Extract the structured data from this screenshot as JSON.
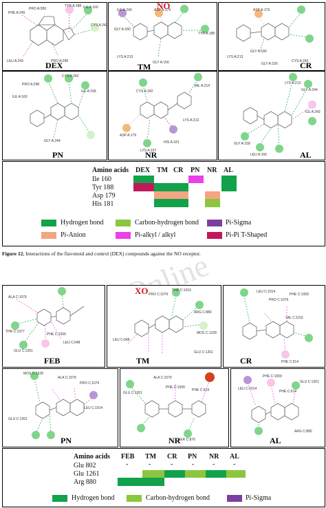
{
  "figure12": {
    "caption_label": "Figure 12.",
    "caption_text": "Interactions of the flavonoid and control (DEX) compounds against the NO receptor.",
    "receptor_label": "NO",
    "panels": [
      "DEX",
      "TM",
      "CR",
      "PN",
      "NR",
      "AL"
    ],
    "table": {
      "header_label": "Amino acids",
      "columns": [
        "DEX",
        "TM",
        "CR",
        "PN",
        "NR",
        "AL"
      ],
      "rows": [
        "Ile 160",
        "Tyr 188",
        "Asp 179",
        "His 181"
      ]
    },
    "legend": [
      "Hydrogen bond",
      "Carbon-hydrogen bond",
      "Pi-Sigma",
      "Pi-Anion",
      "Pi-alkyl / alkyl",
      "Pi-Pi T-Shaped"
    ]
  },
  "figure13": {
    "receptor_label": "XO",
    "panels": [
      "FEB",
      "TM",
      "CR",
      "PN",
      "NR",
      "AL"
    ],
    "table": {
      "header_label": "Amino acids",
      "columns": [
        "FEB",
        "TM",
        "CR",
        "PN",
        "NR",
        "AL"
      ],
      "rows": [
        "Glu 802",
        "Glu 1261",
        "Arg 880"
      ],
      "dash": "-"
    },
    "legend": [
      "Hydrogen bond",
      "Carbon-hydrogen bond",
      "Pi-Sigma"
    ]
  },
  "residue_labels": {
    "dex": [
      "PHE A:245",
      "PRO A:300",
      "TYR A:188",
      "ILE A:160",
      "CYS A:242",
      "LEU A:243",
      "PRO A:298"
    ],
    "tm_no": [
      "ILE A:243",
      "GLY A:180",
      "ASP A:179",
      "TYR A:188",
      "LYS A:213",
      "GLY A:156"
    ],
    "cr_no": [
      "ASP A:179",
      "LYS A:213",
      "GLY A:180",
      "GLY A:156",
      "CYS A:242"
    ],
    "pn_no": [
      "PRO A:298",
      "ILE A:160",
      "GLY A:244",
      "CYS A:242",
      "ILE A:158"
    ],
    "nr_no": [
      "CYS A:242",
      "VAL A:214",
      "ASP A:179",
      "LYS A:157",
      "HIS A:181",
      "LYS A:213"
    ],
    "al_no": [
      "LYS A:213",
      "GLY A:244",
      "ILE A:243",
      "GLY A:158",
      "LEU A:160"
    ],
    "feb_xo": [
      "ALA C:1079",
      "THR C:1077",
      "GLU C:1261",
      "PHE C:1009",
      "LEU C:648"
    ],
    "tm_xo": [
      "PRO C:1076",
      "THR C:1010",
      "ARG C:880",
      "MOS C:1328",
      "LEU C:648",
      "GLU C:1261"
    ],
    "cr_xo": [
      "LEU C:1014",
      "PRO C:1076",
      "PHE C:1009",
      "VAL C:1011",
      "PHE C:914"
    ],
    "pn_xo": [
      "MOS C:1328",
      "GLU C:1261",
      "ALA C:1079",
      "PRO C:1076",
      "LEU C:1014"
    ],
    "nr_xo": [
      "GLU C:1261",
      "ALA C:1079",
      "PHE C:1009",
      "PHE C:914",
      "SER C:876"
    ],
    "al_xo": [
      "LEU C:1014",
      "PHE C:1009",
      "GLU C:1261",
      "PHE C:914",
      "ARG C:880"
    ]
  },
  "watermark": "Online",
  "colors": {
    "hydrogen_bond": "#11a24b",
    "carbon_hydrogen_bond": "#8cc63e",
    "pi_sigma": "#7b3fa0",
    "pi_anion": "#f4a582",
    "pi_alkyl": "#ea3fea",
    "pi_pi_t": "#c2185b",
    "receptor_title": "#d0141c"
  }
}
